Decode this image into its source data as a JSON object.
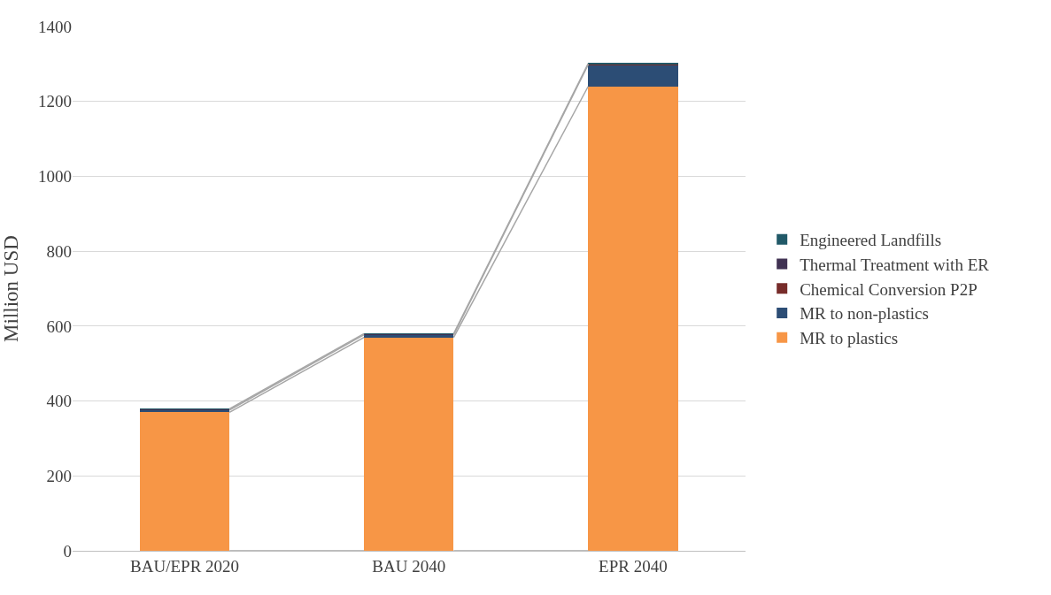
{
  "chart_data": {
    "type": "bar",
    "stacked": true,
    "ylabel": "Million USD",
    "categories": [
      "BAU/EPR 2020",
      "BAU 2040",
      "EPR 2040"
    ],
    "series": [
      {
        "name": "MR to plastics",
        "color": "#f79646",
        "values": [
          370,
          570,
          1240
        ]
      },
      {
        "name": "MR to non-plastics",
        "color": "#2c4d75",
        "values": [
          6,
          7,
          58
        ]
      },
      {
        "name": "Chemical Conversion P2P",
        "color": "#772c2a",
        "values": [
          1,
          1,
          1
        ]
      },
      {
        "name": "Thermal Treatment with ER",
        "color": "#403152",
        "values": [
          1,
          1,
          1
        ]
      },
      {
        "name": "Engineered Landfills",
        "color": "#215968",
        "values": [
          1,
          1,
          1
        ]
      }
    ],
    "ylim": [
      0,
      1400
    ],
    "yticks": [
      0,
      200,
      400,
      600,
      800,
      1000,
      1200,
      1400
    ],
    "grid": "y",
    "legend": "right"
  }
}
